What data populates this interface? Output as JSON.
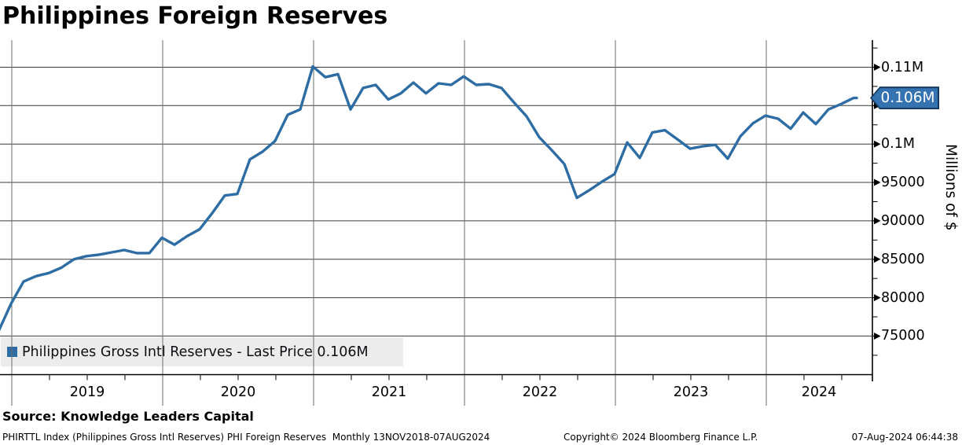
{
  "title": "Philippines Foreign Reserves",
  "legend": {
    "marker_color": "#2e6da4",
    "label": "Philippines Gross Intl Reserves - Last Price 0.106M"
  },
  "y_axis": {
    "title": "Millions of $",
    "major_ticks": [
      {
        "value": 110000,
        "label": "0.11M"
      },
      {
        "value": 105000,
        "label": ""
      },
      {
        "value": 100000,
        "label": "0.1M"
      },
      {
        "value": 95000,
        "label": "95000"
      },
      {
        "value": 90000,
        "label": "90000"
      },
      {
        "value": 85000,
        "label": "85000"
      },
      {
        "value": 80000,
        "label": "80000"
      },
      {
        "value": 75000,
        "label": "75000"
      }
    ],
    "minor_tick_values": [
      112500,
      107500,
      102500,
      97500,
      92500,
      87500,
      82500,
      77500,
      72500
    ]
  },
  "x_axis": {
    "year_labels": [
      "2019",
      "2020",
      "2021",
      "2022",
      "2023",
      "2024"
    ]
  },
  "last_price_badge": {
    "label": "0.106M",
    "value": 106000,
    "fill": "#3572b0",
    "border": "#16395d",
    "text_color": "#ffffff"
  },
  "source": "Source: Knowledge Leaders Capital",
  "footer": {
    "left": "PHIRTTL Index (Philippines Gross Intl Reserves) PHI Foreign Reserves  Monthly 13NOV2018-07AUG2024",
    "center": "Copyright© 2024 Bloomberg Finance L.P.",
    "right": "07-Aug-2024 06:44:38"
  },
  "chart_data": {
    "type": "line",
    "title": "Philippines Foreign Reserves",
    "ylabel": "Millions of $",
    "ylim": [
      70000,
      113500
    ],
    "grid": true,
    "legend_position": "bottom-left",
    "line_color": "#2e6da4",
    "last_price": 106000,
    "x_monthly": [
      "2018-11",
      "2018-12",
      "2019-01",
      "2019-02",
      "2019-03",
      "2019-04",
      "2019-05",
      "2019-06",
      "2019-07",
      "2019-08",
      "2019-09",
      "2019-10",
      "2019-11",
      "2019-12",
      "2020-01",
      "2020-02",
      "2020-03",
      "2020-04",
      "2020-05",
      "2020-06",
      "2020-07",
      "2020-08",
      "2020-09",
      "2020-10",
      "2020-11",
      "2020-12",
      "2021-01",
      "2021-02",
      "2021-03",
      "2021-04",
      "2021-05",
      "2021-06",
      "2021-07",
      "2021-08",
      "2021-09",
      "2021-10",
      "2021-11",
      "2021-12",
      "2022-01",
      "2022-02",
      "2022-03",
      "2022-04",
      "2022-05",
      "2022-06",
      "2022-07",
      "2022-08",
      "2022-09",
      "2022-10",
      "2022-11",
      "2022-12",
      "2023-01",
      "2023-02",
      "2023-03",
      "2023-04",
      "2023-05",
      "2023-06",
      "2023-07",
      "2023-08",
      "2023-09",
      "2023-10",
      "2023-11",
      "2023-12",
      "2024-01",
      "2024-02",
      "2024-03",
      "2024-04",
      "2024-05",
      "2024-06",
      "2024-07",
      "2024-08"
    ],
    "series": [
      {
        "name": "Philippines Gross Intl Reserves",
        "values": [
          75600,
          79200,
          82100,
          82800,
          83200,
          83900,
          85000,
          85400,
          85600,
          85900,
          86200,
          85800,
          85800,
          87800,
          86900,
          88000,
          88900,
          91000,
          93300,
          93500,
          98000,
          99000,
          100400,
          103800,
          104500,
          110100,
          108700,
          109100,
          104500,
          107300,
          107700,
          105800,
          106600,
          108000,
          106600,
          107900,
          107700,
          108800,
          107700,
          107800,
          107300,
          105400,
          103600,
          100900,
          99200,
          97400,
          93000,
          94000,
          95100,
          96100,
          100200,
          98200,
          101500,
          101800,
          100600,
          99400,
          99700,
          99900,
          98100,
          101000,
          102700,
          103700,
          103300,
          102000,
          104100,
          102600,
          104500,
          105200,
          106000,
          106000
        ]
      }
    ]
  }
}
